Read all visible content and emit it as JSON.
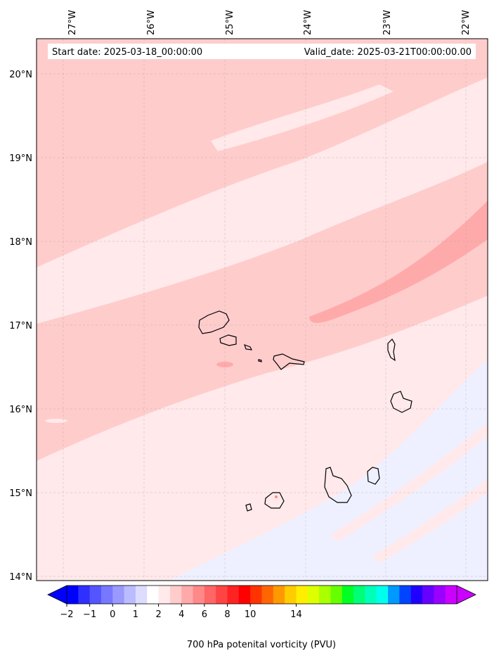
{
  "header": {
    "start_date": "Start date: 2025-03-18_00:00:00",
    "valid_date": "Valid_date: 2025-03-21T00:00:00.00"
  },
  "map": {
    "lon_labels": [
      "27°W",
      "26°W",
      "25°W",
      "24°W",
      "23°W",
      "22°W"
    ],
    "lat_labels": [
      "20°N",
      "19°N",
      "18°N",
      "17°N",
      "16°N",
      "15°N",
      "14°N"
    ],
    "lon_range": [
      -27.3,
      -21.8
    ],
    "lat_range": [
      13.95,
      20.45
    ],
    "gridlines": true
  },
  "colorbar": {
    "label": "700 hPa potenital vorticity (PVU)",
    "ticks": [
      "−2",
      "−1",
      "0",
      "1",
      "2",
      "4",
      "6",
      "8",
      "10",
      "14"
    ],
    "levels": [
      -2,
      -1.5,
      -1,
      -0.5,
      0,
      0.5,
      1,
      1.5,
      2,
      3,
      4,
      5,
      6,
      7,
      8,
      9,
      10,
      12,
      14
    ],
    "colors": [
      "#0000ff",
      "#2f2fff",
      "#5555ff",
      "#7777ff",
      "#9999ff",
      "#bbbbff",
      "#dddcff",
      "#ffffff",
      "#ffe9ea",
      "#ffcccc",
      "#ffaaaa",
      "#ff8888",
      "#ff6666",
      "#ff4444",
      "#ff2222",
      "#ff0000",
      "#ff3300",
      "#ff6600",
      "#ff9900",
      "#ffcc00",
      "#ffee00",
      "#ddff00",
      "#aaff00",
      "#66ff00",
      "#00ff22",
      "#00ff77",
      "#00ffbb",
      "#00ffee",
      "#0099ff",
      "#0044ff",
      "#2200ff",
      "#6600ff",
      "#9900ff",
      "#cc00ff"
    ]
  }
}
